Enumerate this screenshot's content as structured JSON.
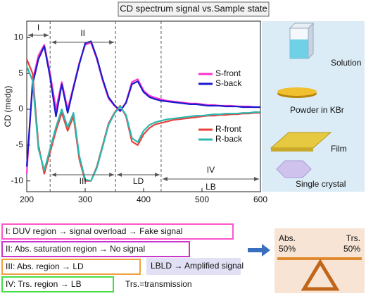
{
  "chart_data": {
    "type": "line",
    "title": "CD spectrum signal vs.Sample state",
    "y_label": "CD (medg)",
    "x": [
      200,
      210,
      220,
      230,
      240,
      250,
      260,
      270,
      280,
      290,
      300,
      310,
      320,
      330,
      340,
      350,
      360,
      370,
      380,
      390,
      400,
      410,
      420,
      430,
      440,
      450,
      460,
      470,
      480,
      490,
      500,
      510,
      520,
      530,
      540,
      550,
      560,
      570,
      580,
      590,
      600
    ],
    "series": [
      {
        "name": "S-front",
        "color": "#ff33cc",
        "values": [
          -9,
          4,
          7.5,
          9,
          5,
          0,
          3.8,
          0,
          3.2,
          6.5,
          9,
          9.3,
          7,
          4,
          1.5,
          0.5,
          -0.3,
          1,
          3.8,
          4.2,
          2.6,
          1.9,
          1.6,
          1.4,
          1.2,
          1.1,
          1,
          0.9,
          0.8,
          0.8,
          0.7,
          0.6,
          0.6,
          0.5,
          0.5,
          0.5,
          0.4,
          0.4,
          0.4,
          0.3,
          0.3
        ]
      },
      {
        "name": "S-back",
        "color": "#1a1acc",
        "values": [
          -8,
          3.5,
          7,
          8.8,
          4.5,
          -1,
          3.5,
          -0.5,
          3,
          6.3,
          9.2,
          9.5,
          7.2,
          4.2,
          1.7,
          0.6,
          -0.2,
          0.9,
          3.5,
          3.9,
          2.4,
          1.7,
          1.4,
          1.2,
          1.1,
          1,
          0.9,
          0.8,
          0.7,
          0.7,
          0.6,
          0.5,
          0.5,
          0.5,
          0.4,
          0.4,
          0.4,
          0.3,
          0.3,
          0.3,
          0.3
        ]
      },
      {
        "name": "R-front",
        "color": "#e8413c",
        "values": [
          7,
          5,
          -5,
          -9,
          -6,
          -3,
          -0.5,
          -3,
          -1,
          -7,
          -10,
          -10,
          -8,
          -5,
          -2,
          -0.5,
          0.5,
          -1,
          -4.5,
          -5,
          -3.5,
          -2.6,
          -2.1,
          -1.9,
          -1.7,
          -1.5,
          -1.4,
          -1.3,
          -1.2,
          -1.1,
          -1,
          -0.9,
          -0.9,
          -0.8,
          -0.8,
          -0.7,
          -0.7,
          -0.6,
          -0.6,
          -0.5,
          -0.5
        ]
      },
      {
        "name": "R-back",
        "color": "#2ab8b0",
        "values": [
          6,
          4,
          -5.5,
          -8.5,
          -5.5,
          -2.5,
          0,
          -2.5,
          -0.5,
          -6.5,
          -9.8,
          -10,
          -8.2,
          -5.2,
          -2.2,
          -0.6,
          0.4,
          -0.8,
          -4,
          -4.6,
          -3,
          -2.2,
          -1.8,
          -1.6,
          -1.4,
          -1.3,
          -1.2,
          -1.1,
          -1,
          -0.9,
          -0.9,
          -0.8,
          -0.7,
          -0.7,
          -0.6,
          -0.6,
          -0.6,
          -0.5,
          -0.5,
          -0.4,
          -0.4
        ]
      }
    ],
    "xlim": [
      200,
      600
    ],
    "xticks": [
      200,
      300,
      400,
      500,
      600
    ],
    "ylim": [
      -11.5,
      12.3
    ],
    "yticks": [
      -10,
      -5,
      0,
      5,
      10
    ],
    "dividers": [
      240,
      352,
      430
    ],
    "regions": [
      {
        "label": "I",
        "from": 200,
        "to": 240,
        "arrow": true
      },
      {
        "label": "II",
        "from": 240,
        "to": 352,
        "arrow": true
      },
      {
        "label": "III",
        "from": 240,
        "to": 352,
        "arrow": true
      },
      {
        "label": "LD",
        "from": 352,
        "to": 430,
        "arrow": true
      },
      {
        "label": "IV",
        "from": 430,
        "to": 600,
        "arrow": false
      },
      {
        "label": "LB",
        "from": 430,
        "to": 600,
        "arrow": true
      }
    ]
  },
  "samples": [
    "Solution",
    "Powder in KBr",
    "Film",
    "Single crystal"
  ],
  "notes": [
    "I: DUV region → signal overload → Fake signal",
    "II: Abs. saturation region → No signal",
    "III: Abs. region → LD",
    "LBLD → Amplified signal",
    "IV: Trs. region → LB",
    "Trs.=transmission"
  ],
  "balance": {
    "left": "Abs.",
    "left_value": "50%",
    "right": "Trs.",
    "right_value": "50%"
  }
}
